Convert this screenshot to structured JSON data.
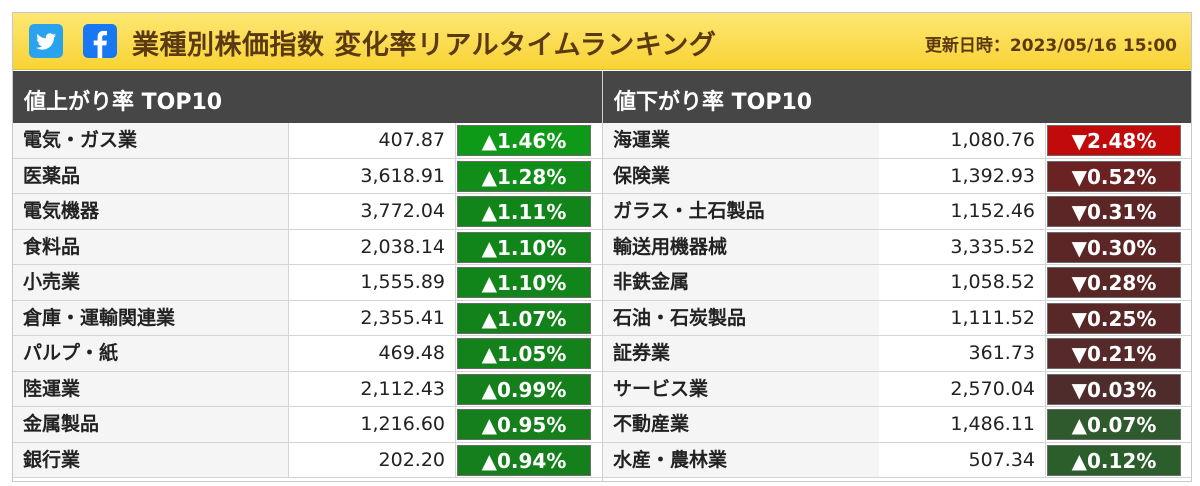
{
  "header": {
    "title": "業種別株価指数 変化率リアルタイムランキング",
    "updated": "更新日時：2023/05/16 15:00",
    "share": [
      {
        "name": "twitter-share-icon",
        "color": "#2aa3ef"
      },
      {
        "name": "facebook-share-icon",
        "color": "#1877f2"
      }
    ]
  },
  "panels": {
    "gainers": {
      "title": "値上がり率 TOP10",
      "rows": [
        {
          "name": "電気・ガス業",
          "value": "407.87",
          "change": "▲1.46%",
          "color": "#0e9a18"
        },
        {
          "name": "医薬品",
          "value": "3,618.91",
          "change": "▲1.28%",
          "color": "#118d1a"
        },
        {
          "name": "電気機器",
          "value": "3,772.04",
          "change": "▲1.11%",
          "color": "#12851a"
        },
        {
          "name": "食料品",
          "value": "2,038.14",
          "change": "▲1.10%",
          "color": "#12851a"
        },
        {
          "name": "小売業",
          "value": "1,555.89",
          "change": "▲1.10%",
          "color": "#12851a"
        },
        {
          "name": "倉庫・運輸関連業",
          "value": "2,355.41",
          "change": "▲1.07%",
          "color": "#13821a"
        },
        {
          "name": "パルプ・紙",
          "value": "469.48",
          "change": "▲1.05%",
          "color": "#13821a"
        },
        {
          "name": "陸運業",
          "value": "2,112.43",
          "change": "▲0.99%",
          "color": "#147f1b"
        },
        {
          "name": "金属製品",
          "value": "1,216.60",
          "change": "▲0.95%",
          "color": "#147f1b"
        },
        {
          "name": "銀行業",
          "value": "202.20",
          "change": "▲0.94%",
          "color": "#147f1b"
        }
      ]
    },
    "losers": {
      "title": "値下がり率 TOP10",
      "rows": [
        {
          "name": "海運業",
          "value": "1,080.76",
          "change": "▼2.48%",
          "color": "#c10a0a"
        },
        {
          "name": "保険業",
          "value": "1,392.93",
          "change": "▼0.52%",
          "color": "#6a2222"
        },
        {
          "name": "ガラス・土石製品",
          "value": "1,152.46",
          "change": "▼0.31%",
          "color": "#5c2626"
        },
        {
          "name": "輸送用機器械",
          "value": "3,335.52",
          "change": "▼0.30%",
          "color": "#5c2626"
        },
        {
          "name": "非鉄金属",
          "value": "1,058.52",
          "change": "▼0.28%",
          "color": "#5a2727"
        },
        {
          "name": "石油・石炭製品",
          "value": "1,111.52",
          "change": "▼0.25%",
          "color": "#582828"
        },
        {
          "name": "証券業",
          "value": "361.73",
          "change": "▼0.21%",
          "color": "#562a2a"
        },
        {
          "name": "サービス業",
          "value": "2,570.04",
          "change": "▼0.03%",
          "color": "#4f2c2c"
        },
        {
          "name": "不動産業",
          "value": "1,486.11",
          "change": "▲0.07%",
          "color": "#2e5a2e"
        },
        {
          "name": "水産・農林業",
          "value": "507.34",
          "change": "▲0.12%",
          "color": "#2c5e2c"
        }
      ]
    }
  }
}
